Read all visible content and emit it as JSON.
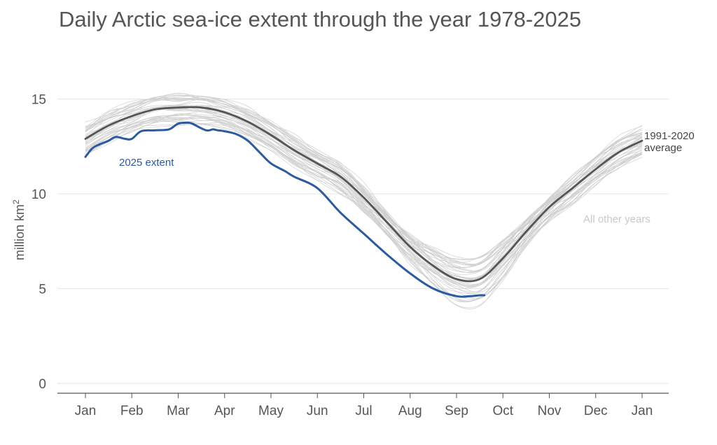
{
  "chart_data": {
    "type": "line",
    "title": "Daily Arctic sea-ice extent through the year 1978-2025",
    "ylabel": "million km",
    "ylabel_sup": "2",
    "xlabel": "",
    "ylim": [
      0,
      17
    ],
    "yticks": [
      0,
      5,
      10,
      15
    ],
    "xticks": [
      "Jan",
      "Feb",
      "Mar",
      "Apr",
      "May",
      "Jun",
      "Jul",
      "Aug",
      "Sep",
      "Oct",
      "Nov",
      "Dec",
      "Jan"
    ],
    "grid": true,
    "series": [
      {
        "name": "1991-2020 average",
        "color": "#555555",
        "x": [
          0,
          0.5,
          1,
          1.5,
          2,
          2.5,
          3,
          3.5,
          4,
          4.5,
          5,
          5.5,
          6,
          6.5,
          7,
          7.5,
          8,
          8.5,
          9,
          9.5,
          10,
          10.5,
          11,
          11.5,
          12
        ],
        "y": [
          12.9,
          13.6,
          14.1,
          14.45,
          14.55,
          14.55,
          14.3,
          13.8,
          13.1,
          12.3,
          11.6,
          10.9,
          9.8,
          8.5,
          7.2,
          6.2,
          5.5,
          5.5,
          6.6,
          8.0,
          9.3,
          10.3,
          11.3,
          12.2,
          12.8
        ]
      },
      {
        "name": "2025 extent",
        "color": "#2c5aa0",
        "x": [
          0,
          0.15,
          0.3,
          0.5,
          0.65,
          0.85,
          1.0,
          1.2,
          1.5,
          1.8,
          2.0,
          2.2,
          2.3,
          2.6,
          2.75,
          2.85,
          3.0,
          3.25,
          3.5,
          3.75,
          4.0,
          4.3,
          4.5,
          5.0,
          5.5,
          6.0,
          6.5,
          7.0,
          7.5,
          8.0,
          8.3,
          8.5,
          8.6
        ],
        "y": [
          11.95,
          12.4,
          12.6,
          12.8,
          13.0,
          12.9,
          12.9,
          13.3,
          13.35,
          13.4,
          13.7,
          13.75,
          13.7,
          13.35,
          13.4,
          13.35,
          13.3,
          13.15,
          12.8,
          12.2,
          11.6,
          11.2,
          10.9,
          10.3,
          9.0,
          7.9,
          6.8,
          5.8,
          5.0,
          4.6,
          4.6,
          4.65,
          4.65
        ]
      }
    ],
    "other_years_label": "All other years",
    "annotations": {
      "average_line1": "1991-2020",
      "average_line2": "average",
      "extent_label": "2025 extent",
      "other_years": "All other years"
    }
  }
}
